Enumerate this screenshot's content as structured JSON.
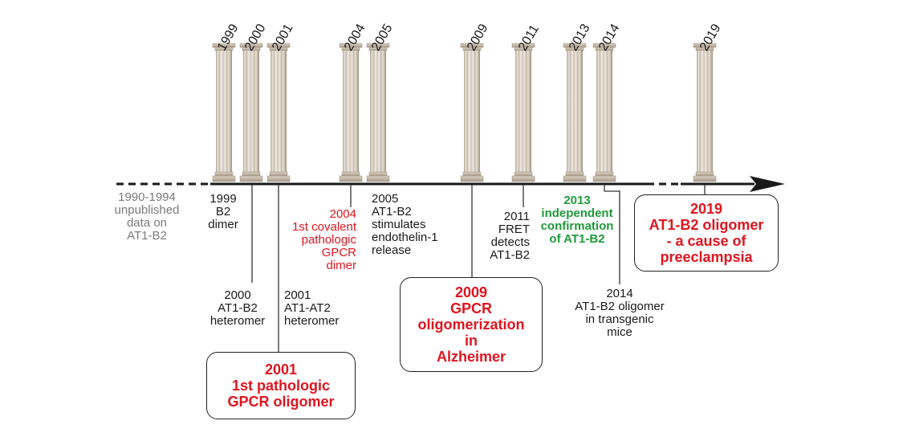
{
  "years": [
    "1999",
    "2000",
    "2001",
    "2004",
    "2005",
    "2009",
    "2011",
    "2013",
    "2014",
    "2019"
  ],
  "events": {
    "e1990": [
      "1990-1994",
      "unpublished",
      "data on",
      "AT1-B2"
    ],
    "e1999": [
      "1999",
      "B2",
      "dimer"
    ],
    "e2000": [
      "2000",
      "AT1-B2",
      "heteromer"
    ],
    "e2001": [
      "2001",
      "AT1-AT2",
      "heteromer"
    ],
    "e2004": [
      "2004",
      "1st covalent",
      "pathologic",
      "GPCR",
      "dimer"
    ],
    "e2005": [
      "2005",
      "AT1-B2",
      "stimulates",
      "endothelin-1",
      "release"
    ],
    "e2011": [
      "2011",
      "FRET",
      "detects",
      "AT1-B2"
    ],
    "e2013": [
      "2013",
      "independent",
      "confirmation",
      "of AT1-B2"
    ],
    "e2014": [
      "2014",
      "AT1-B2 oligomer",
      "in transgenic",
      "mice"
    ]
  },
  "boxes": {
    "b2001": [
      "2001",
      "1st pathologic",
      "GPCR oligomer"
    ],
    "b2009": [
      "2009",
      "GPCR",
      "oligomerization",
      "in",
      "Alzheimer"
    ],
    "b2019": [
      "2019",
      "AT1-B2 oligomer",
      "- a cause of",
      "preeclampsia"
    ]
  },
  "colors": {
    "axis": "#1a1a1a",
    "highlight_red": "#e0141e",
    "highlight_green": "#1f9a3a",
    "muted": "#7a7a7a",
    "pillar_light": "#ece6dc",
    "pillar_dark": "#a89c8a"
  }
}
